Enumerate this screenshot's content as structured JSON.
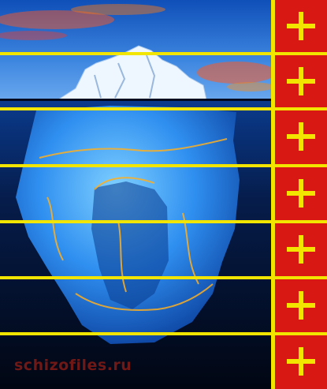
{
  "image": {
    "subject": "iceberg",
    "watermark_text": "schizofiles.ru"
  },
  "sidebar": {
    "button_icon": "plus-icon",
    "buttons": [
      {
        "label": "+"
      },
      {
        "label": "+"
      },
      {
        "label": "+"
      },
      {
        "label": "+"
      },
      {
        "label": "+"
      },
      {
        "label": "+"
      },
      {
        "label": "+"
      }
    ]
  },
  "colors": {
    "divider": "#f2e500",
    "sidebar": "#d81812",
    "sky": "#1e63c8",
    "deep_water": "#020a1e",
    "ice": "#3ea2ff",
    "glow": "#ff9a10"
  }
}
